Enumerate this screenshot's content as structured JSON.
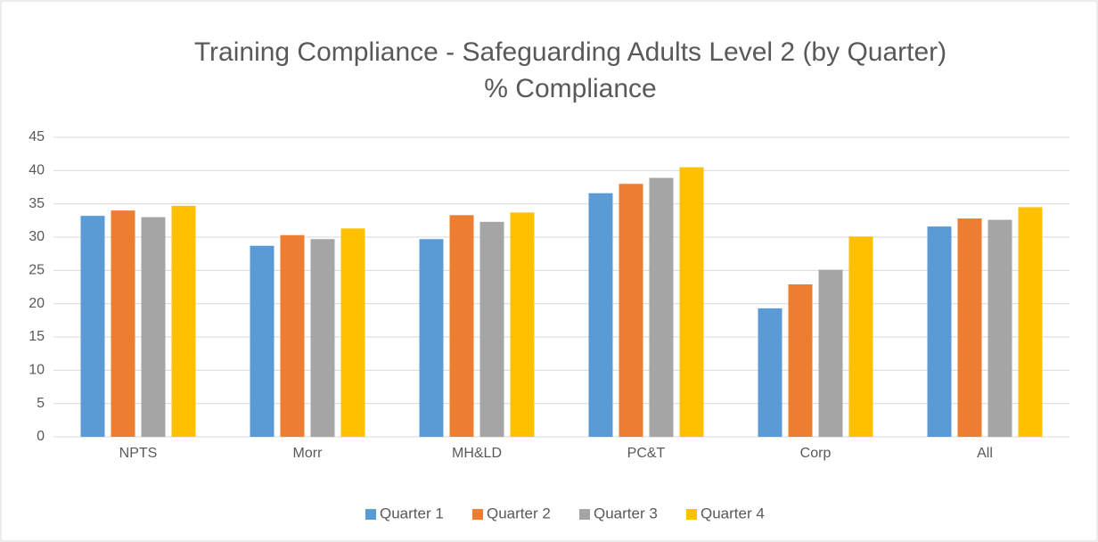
{
  "chart_data": {
    "type": "bar",
    "title": "Training Compliance - Safeguarding Adults Level 2 (by Quarter)",
    "subtitle": "% Compliance",
    "categories": [
      "NPTS",
      "Morr",
      "MH&LD",
      "PC&T",
      "Corp",
      "All"
    ],
    "series": [
      {
        "name": "Quarter 1",
        "color": "#5b9bd5",
        "values": [
          33.2,
          28.7,
          29.7,
          36.6,
          19.3,
          31.6
        ]
      },
      {
        "name": "Quarter 2",
        "color": "#ed7d31",
        "values": [
          34.0,
          30.3,
          33.3,
          38.0,
          22.9,
          32.8
        ]
      },
      {
        "name": "Quarter 3",
        "color": "#a5a5a5",
        "values": [
          33.0,
          29.7,
          32.3,
          38.9,
          25.1,
          32.6
        ]
      },
      {
        "name": "Quarter 4",
        "color": "#ffc000",
        "values": [
          34.7,
          31.3,
          33.7,
          40.5,
          30.1,
          34.5
        ]
      }
    ],
    "ylim": [
      0,
      45
    ],
    "yticks": [
      0,
      5,
      10,
      15,
      20,
      25,
      30,
      35,
      40,
      45
    ],
    "grid": true,
    "legend": "bottom"
  }
}
